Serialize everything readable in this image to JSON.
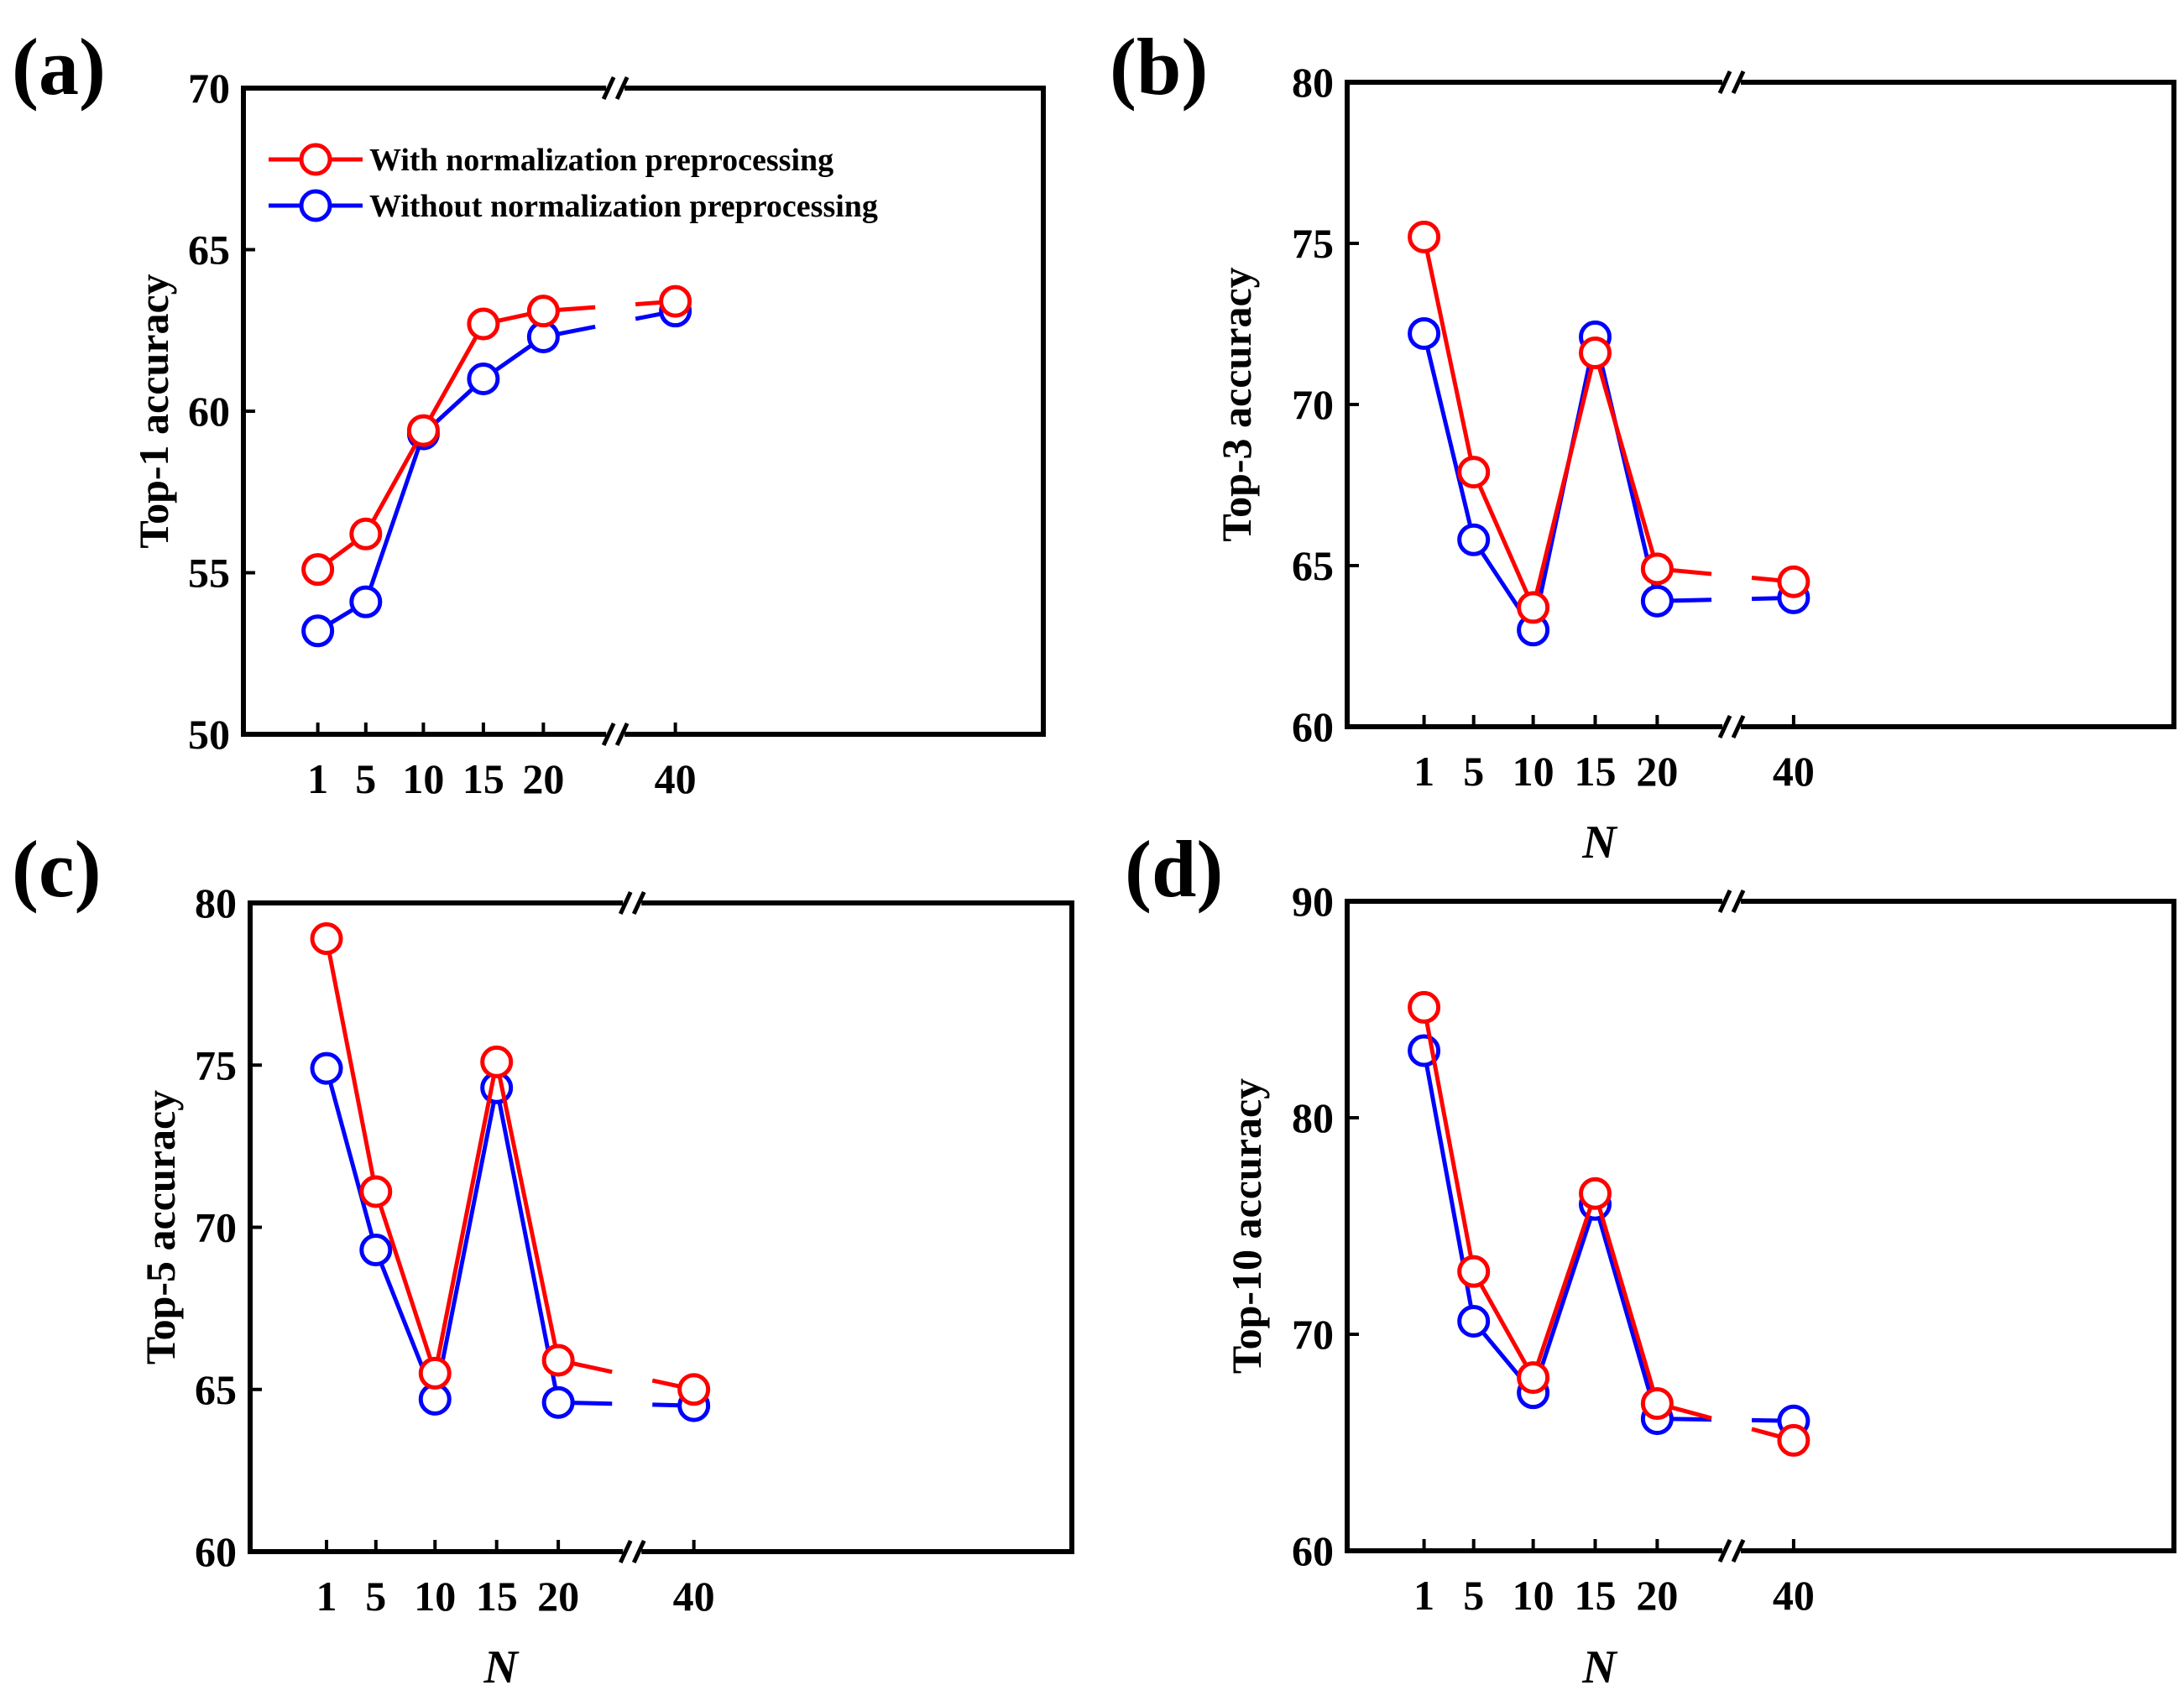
{
  "colors": {
    "with": "#ff0000",
    "without": "#0000ff",
    "axis": "#000000"
  },
  "legend": {
    "with_label": "With normalization preprocessing",
    "without_label": "Without normalization preprocessing"
  },
  "chart_data": [
    {
      "type": "line",
      "panel": "(a)",
      "title": "",
      "xlabel": "",
      "ylabel": "Top-1 accuracy",
      "categories": [
        "1",
        "5",
        "10",
        "15",
        "20",
        "40"
      ],
      "yticks": [
        "50",
        "55",
        "60",
        "65",
        "70"
      ],
      "ylim": [
        50,
        70
      ],
      "axis_break": "between 20 and 40",
      "series": [
        {
          "name": "With normalization preprocessing",
          "values": [
            55.1,
            56.2,
            59.4,
            62.7,
            63.1,
            63.4
          ]
        },
        {
          "name": "Without normalization preprocessing",
          "values": [
            53.2,
            54.1,
            59.3,
            61.0,
            62.3,
            63.1
          ]
        }
      ]
    },
    {
      "type": "line",
      "panel": "(b)",
      "title": "",
      "xlabel": "N",
      "ylabel": "Top-3 accuracy",
      "categories": [
        "1",
        "5",
        "10",
        "15",
        "20",
        "40"
      ],
      "yticks": [
        "60",
        "65",
        "70",
        "75",
        "80"
      ],
      "ylim": [
        60,
        80
      ],
      "axis_break": "between 20 and 40",
      "series": [
        {
          "name": "With normalization preprocessing",
          "values": [
            75.2,
            67.9,
            63.7,
            71.6,
            64.9,
            64.5
          ]
        },
        {
          "name": "Without normalization preprocessing",
          "values": [
            72.2,
            65.8,
            63.0,
            72.1,
            63.9,
            64.0
          ]
        }
      ]
    },
    {
      "type": "line",
      "panel": "(c)",
      "title": "",
      "xlabel": "N",
      "ylabel": "Top-5 accuracy",
      "categories": [
        "1",
        "5",
        "10",
        "15",
        "20",
        "40"
      ],
      "yticks": [
        "60",
        "65",
        "70",
        "75",
        "80"
      ],
      "ylim": [
        60,
        80
      ],
      "axis_break": "between 20 and 40",
      "series": [
        {
          "name": "With normalization preprocessing",
          "values": [
            78.9,
            71.1,
            65.5,
            75.1,
            65.9,
            65.0
          ]
        },
        {
          "name": "Without normalization preprocessing",
          "values": [
            74.9,
            69.3,
            64.7,
            74.3,
            64.6,
            64.5
          ]
        }
      ]
    },
    {
      "type": "line",
      "panel": "(d)",
      "title": "",
      "xlabel": "N",
      "ylabel": "Top-10 accuracy",
      "categories": [
        "1",
        "5",
        "10",
        "15",
        "20",
        "40"
      ],
      "yticks": [
        "60",
        "70",
        "80",
        "90"
      ],
      "ylim": [
        60,
        90
      ],
      "axis_break": "between 20 and 40",
      "series": [
        {
          "name": "With normalization preprocessing",
          "values": [
            85.1,
            72.9,
            68.0,
            76.5,
            66.8,
            65.1
          ]
        },
        {
          "name": "Without normalization preprocessing",
          "values": [
            83.1,
            70.6,
            67.3,
            76.0,
            66.1,
            66.0
          ]
        }
      ]
    }
  ]
}
